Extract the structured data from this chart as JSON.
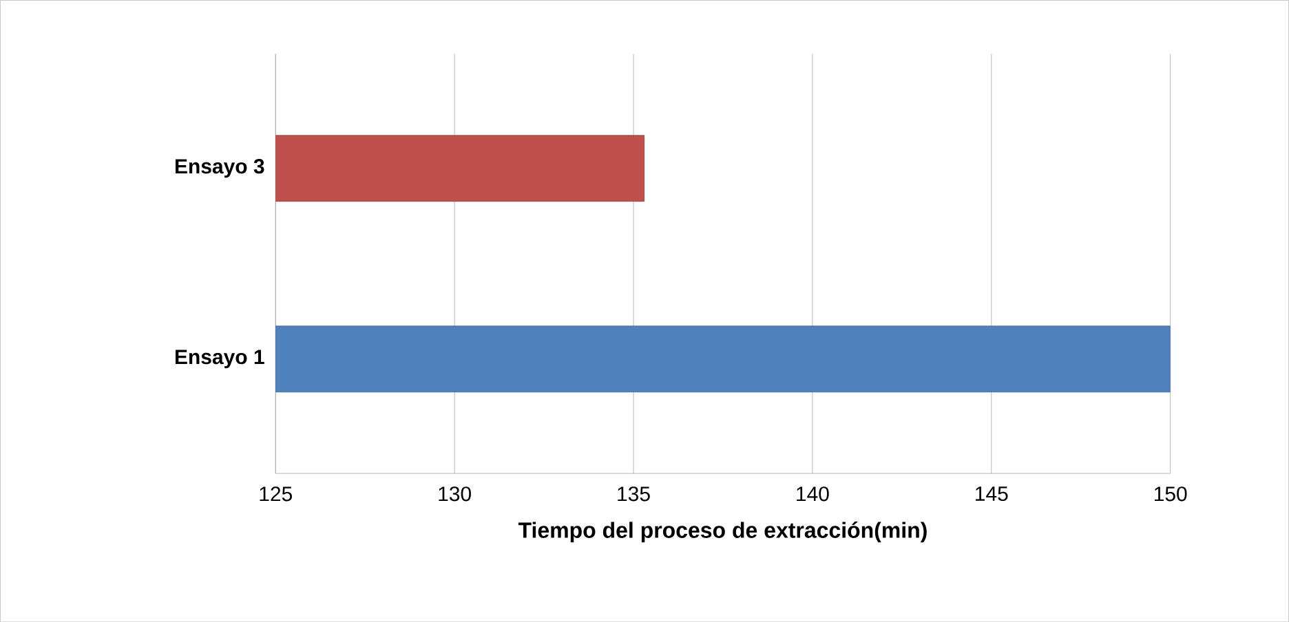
{
  "chart_data": {
    "type": "bar",
    "orientation": "horizontal",
    "xlabel": "Tiempo del proceso de extracción(min)",
    "categories": [
      "Ensayo 3",
      "Ensayo 1"
    ],
    "values": [
      135.3,
      150
    ],
    "colors": [
      "#c0504d",
      "#4f81bd"
    ],
    "xlim": [
      125,
      150
    ],
    "xticks": [
      125,
      130,
      135,
      140,
      145,
      150
    ],
    "grid": "x"
  }
}
